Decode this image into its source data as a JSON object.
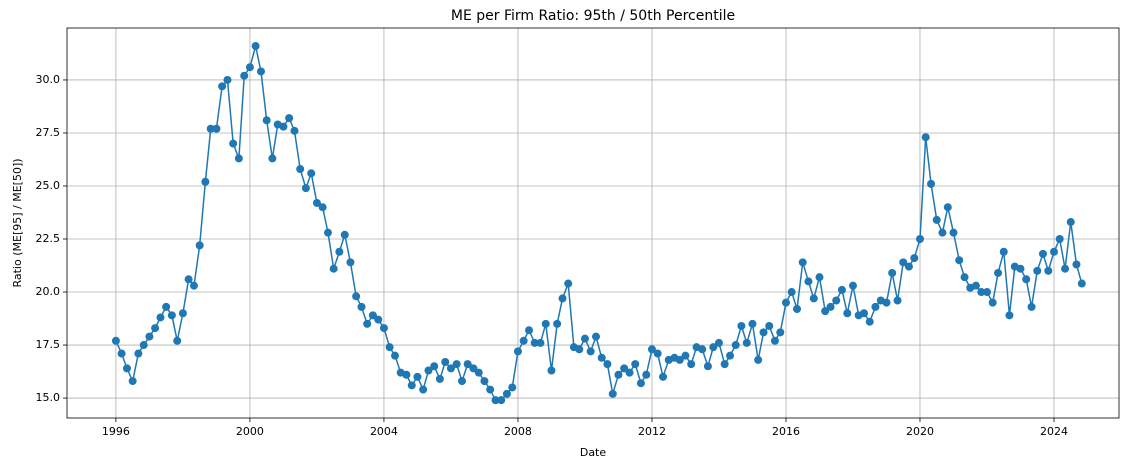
{
  "chart_data": {
    "type": "line",
    "title": "ME per Firm Ratio: 95th / 50th Percentile",
    "x_label": "Date",
    "y_label": "Ratio (ME[95] / ME[50])",
    "grid": true,
    "xlim": [
      1994.54,
      2025.94
    ],
    "ylim": [
      14.06,
      32.45
    ],
    "xticks": [
      1996,
      2000,
      2004,
      2008,
      2012,
      2016,
      2020,
      2024
    ],
    "yticks": [
      {
        "value": 15,
        "label": "15.0"
      },
      17.5,
      {
        "value": 20,
        "label": "20.0"
      },
      22.5,
      {
        "value": 25,
        "label": "25.0"
      },
      27.5,
      {
        "value": 30,
        "label": "30.0"
      }
    ],
    "series": [
      {
        "name": "ME[95] / ME[50]",
        "color": "#1f77b4",
        "x": [
          1996,
          1996.17,
          1996.33,
          1996.5,
          1996.67,
          1996.83,
          1997,
          1997.17,
          1997.33,
          1997.5,
          1997.67,
          1997.83,
          1998,
          1998.17,
          1998.33,
          1998.5,
          1998.67,
          1998.83,
          1999,
          1999.17,
          1999.33,
          1999.5,
          1999.67,
          1999.83,
          2000,
          2000.17,
          2000.33,
          2000.5,
          2000.67,
          2000.83,
          2001,
          2001.17,
          2001.33,
          2001.5,
          2001.67,
          2001.83,
          2002,
          2002.17,
          2002.33,
          2002.5,
          2002.67,
          2002.83,
          2003,
          2003.17,
          2003.33,
          2003.5,
          2003.67,
          2003.83,
          2004,
          2004.17,
          2004.33,
          2004.5,
          2004.67,
          2004.83,
          2005,
          2005.17,
          2005.33,
          2005.5,
          2005.67,
          2005.83,
          2006,
          2006.17,
          2006.33,
          2006.5,
          2006.67,
          2006.83,
          2007,
          2007.17,
          2007.33,
          2007.5,
          2007.67,
          2007.83,
          2008,
          2008.17,
          2008.33,
          2008.5,
          2008.67,
          2008.83,
          2009,
          2009.17,
          2009.33,
          2009.5,
          2009.67,
          2009.83,
          2010,
          2010.17,
          2010.33,
          2010.5,
          2010.67,
          2010.83,
          2011,
          2011.17,
          2011.33,
          2011.5,
          2011.67,
          2011.83,
          2012,
          2012.17,
          2012.33,
          2012.5,
          2012.67,
          2012.83,
          2013,
          2013.17,
          2013.33,
          2013.5,
          2013.67,
          2013.83,
          2014,
          2014.17,
          2014.33,
          2014.5,
          2014.67,
          2014.83,
          2015,
          2015.17,
          2015.33,
          2015.5,
          2015.67,
          2015.83,
          2016,
          2016.17,
          2016.33,
          2016.5,
          2016.67,
          2016.83,
          2017,
          2017.17,
          2017.33,
          2017.5,
          2017.67,
          2017.83,
          2018,
          2018.17,
          2018.33,
          2018.5,
          2018.67,
          2018.83,
          2019,
          2019.17,
          2019.33,
          2019.5,
          2019.67,
          2019.83,
          2020,
          2020.17,
          2020.33,
          2020.5,
          2020.67,
          2020.83,
          2021,
          2021.17,
          2021.33,
          2021.5,
          2021.67,
          2021.83,
          2022,
          2022.17,
          2022.33,
          2022.5,
          2022.67,
          2022.83,
          2023,
          2023.17,
          2023.33,
          2023.5,
          2023.67,
          2023.83,
          2024,
          2024.17,
          2024.33,
          2024.5,
          2024.67,
          2024.83
        ],
        "values": [
          17.7,
          17.1,
          16.4,
          15.8,
          17.1,
          17.5,
          17.9,
          18.3,
          18.8,
          19.3,
          18.9,
          17.7,
          19.0,
          20.6,
          20.3,
          22.2,
          25.2,
          27.7,
          27.7,
          29.7,
          30.0,
          27.0,
          26.3,
          30.2,
          30.6,
          31.6,
          30.4,
          28.1,
          26.3,
          27.9,
          27.8,
          28.2,
          27.6,
          25.8,
          24.9,
          25.6,
          24.2,
          24.0,
          22.8,
          21.1,
          21.9,
          22.7,
          21.4,
          19.8,
          19.3,
          18.5,
          18.9,
          18.7,
          18.3,
          17.4,
          17.0,
          16.2,
          16.1,
          15.6,
          16.0,
          15.4,
          16.3,
          16.5,
          15.9,
          16.7,
          16.4,
          16.6,
          15.8,
          16.6,
          16.4,
          16.2,
          15.8,
          15.4,
          14.9,
          14.9,
          15.2,
          15.5,
          17.2,
          17.7,
          18.2,
          17.6,
          17.6,
          18.5,
          16.3,
          18.5,
          19.7,
          20.4,
          17.4,
          17.3,
          17.8,
          17.2,
          17.9,
          16.9,
          16.6,
          15.2,
          16.1,
          16.4,
          16.2,
          16.6,
          15.7,
          16.1,
          17.3,
          17.1,
          16.0,
          16.8,
          16.9,
          16.8,
          17.0,
          16.6,
          17.4,
          17.3,
          16.5,
          17.4,
          17.6,
          16.6,
          17.0,
          17.5,
          18.4,
          17.6,
          18.5,
          16.8,
          18.1,
          18.4,
          17.7,
          18.1,
          19.5,
          20.0,
          19.2,
          21.4,
          20.5,
          19.7,
          20.7,
          19.1,
          19.3,
          19.6,
          20.1,
          19.0,
          20.3,
          18.9,
          19.0,
          18.6,
          19.3,
          19.6,
          19.5,
          20.9,
          19.6,
          21.4,
          21.2,
          21.6,
          22.5,
          27.3,
          25.1,
          23.4,
          22.8,
          24.0,
          22.8,
          21.5,
          20.7,
          20.2,
          20.3,
          20.0,
          20.0,
          19.5,
          20.9,
          21.9,
          18.9,
          21.2,
          21.1,
          20.6,
          19.3,
          21.0,
          21.8,
          21.0,
          21.9,
          22.5,
          21.1,
          23.3,
          21.3,
          20.4
        ]
      }
    ]
  }
}
